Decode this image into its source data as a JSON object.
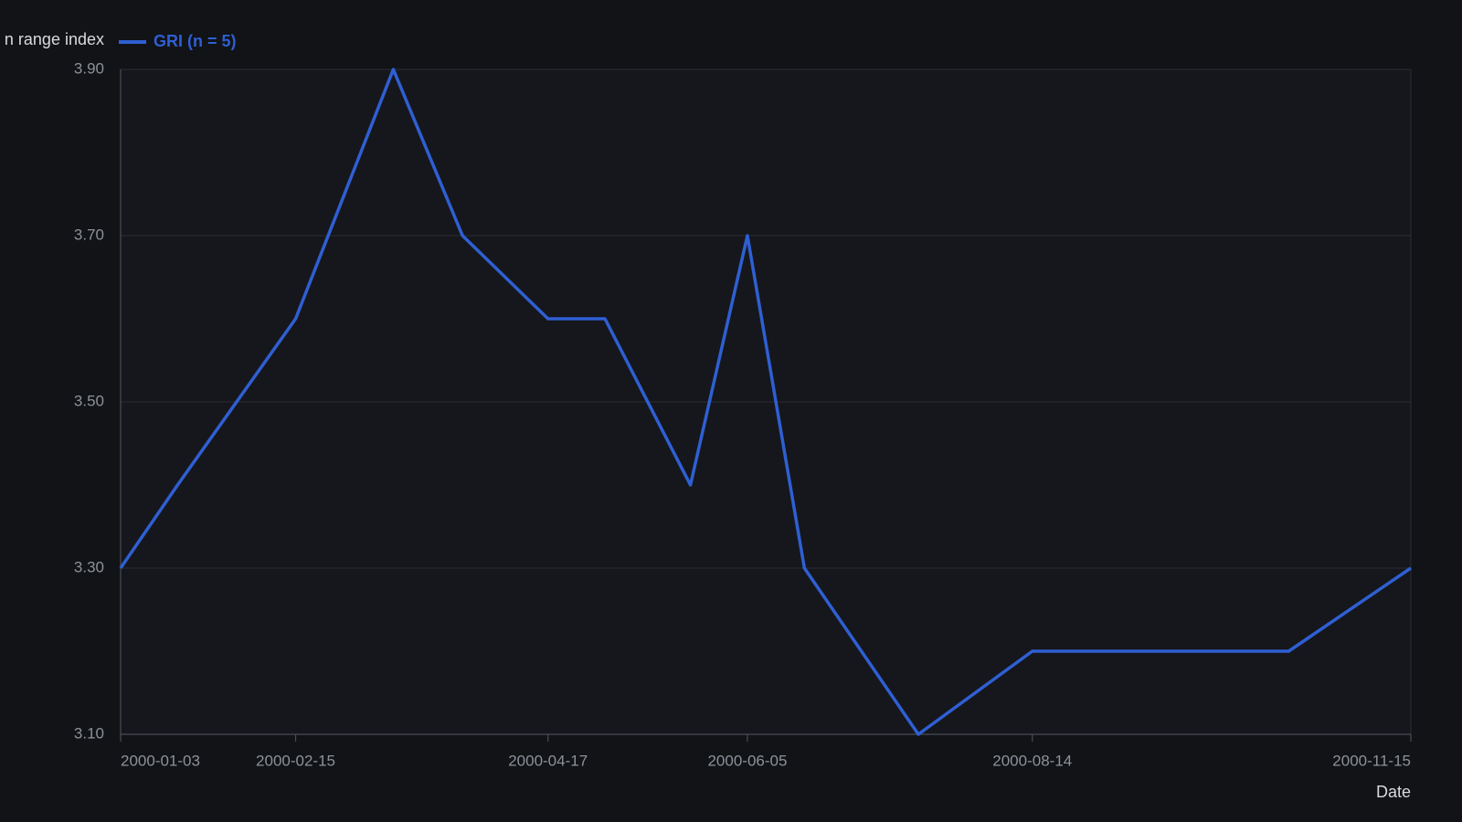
{
  "chart_data": {
    "type": "line",
    "y_label": "n range index",
    "x_label": "Date",
    "x": [
      "2000-01-03",
      "2000-01-17",
      "2000-02-15",
      "2000-03-10",
      "2000-03-27",
      "2000-04-17",
      "2000-05-01",
      "2000-05-22",
      "2000-06-05",
      "2000-06-19",
      "2000-07-17",
      "2000-08-14",
      "2000-10-16",
      "2000-11-15"
    ],
    "series": [
      {
        "name": "GRI (n = 5)",
        "color": "#2f5fd3",
        "values": [
          3.3,
          3.4,
          3.6,
          3.9,
          3.7,
          3.6,
          3.6,
          3.4,
          3.7,
          3.3,
          3.1,
          3.2,
          3.2,
          3.3
        ]
      }
    ],
    "xlim": [
      "2000-01-03",
      "2000-11-15"
    ],
    "xticks": [
      "2000-01-03",
      "2000-02-15",
      "2000-04-17",
      "2000-06-05",
      "2000-08-14",
      "2000-11-15"
    ],
    "ylim": [
      3.1,
      3.9
    ],
    "yticks": [
      {
        "value": 3.1,
        "label": "3.10"
      },
      {
        "value": 3.3,
        "label": "3.30"
      },
      {
        "value": 3.5,
        "label": "3.50"
      },
      {
        "value": 3.7,
        "label": "3.70"
      },
      {
        "value": 3.9,
        "label": "3.90"
      }
    ],
    "grid": true
  }
}
